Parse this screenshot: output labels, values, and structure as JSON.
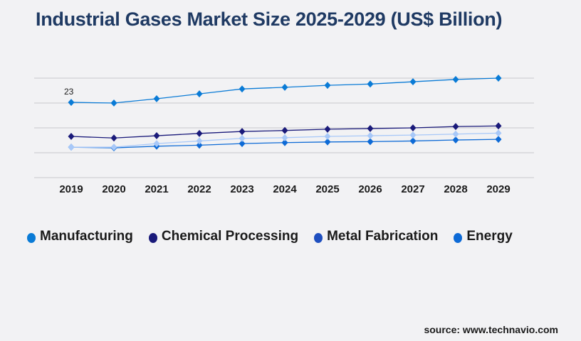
{
  "title": "Industrial Gases Market Size 2025-2029 (US$ Billion)",
  "source": "source: www.technavio.com",
  "chart_data": {
    "type": "line",
    "title": "Industrial Gases Market Size 2025-2029 (US$ Billion)",
    "categories": [
      "2019",
      "2020",
      "2021",
      "2022",
      "2023",
      "2024",
      "2025",
      "2026",
      "2027",
      "2028",
      "2029"
    ],
    "series": [
      {
        "name": "Manufacturing",
        "color": "#0a7bd6",
        "legend_color": "#0a7bd6",
        "values": [
          23.0,
          22.8,
          24.1,
          25.6,
          27.1,
          27.6,
          28.2,
          28.6,
          29.3,
          30.0,
          30.4
        ]
      },
      {
        "name": "Chemical Processing",
        "color": "#1a1a7a",
        "legend_color": "#1a1a7a",
        "values": [
          12.6,
          12.1,
          12.8,
          13.5,
          14.1,
          14.4,
          14.8,
          15.0,
          15.2,
          15.6,
          15.8
        ]
      },
      {
        "name": "Metal Fabrication",
        "color": "#a8c8f8",
        "legend_color": "#1f4fbf",
        "values": [
          9.3,
          9.3,
          10.4,
          11.2,
          12.0,
          12.2,
          12.6,
          12.8,
          13.0,
          13.3,
          13.6
        ]
      },
      {
        "name": "Energy",
        "color": "#0d6ad6",
        "legend_color": "#0d6ad6",
        "values": [
          9.3,
          9.1,
          9.6,
          9.9,
          10.4,
          10.7,
          10.9,
          11.0,
          11.2,
          11.5,
          11.7
        ]
      }
    ],
    "data_labels": [
      {
        "series": "Manufacturing",
        "category": "2019",
        "text": "23"
      }
    ],
    "ylim": [
      0,
      30.4
    ],
    "grid": true,
    "legend": "bottom-left"
  }
}
